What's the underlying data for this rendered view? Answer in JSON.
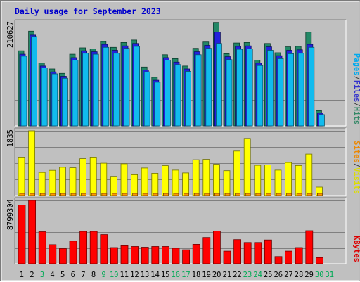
{
  "chart_data": {
    "type": "bar",
    "title": "Daily usage for September 2023",
    "categories": [
      "1",
      "2",
      "3",
      "4",
      "5",
      "6",
      "7",
      "8",
      "9",
      "10",
      "11",
      "12",
      "13",
      "14",
      "15",
      "16",
      "17",
      "18",
      "19",
      "20",
      "21",
      "22",
      "23",
      "24",
      "25",
      "26",
      "27",
      "28",
      "29",
      "30",
      "31"
    ],
    "weekend_days": [
      "3",
      "9",
      "10",
      "16",
      "17",
      "23",
      "24",
      "30",
      "31"
    ],
    "panels": [
      {
        "name": "traffic",
        "max_label": "210627",
        "ymax": 210627,
        "legend": [
          {
            "text": "Pages",
            "color": "#00aaee"
          },
          {
            "text": "/",
            "color": "#404040"
          },
          {
            "text": "Files",
            "color": "#3333cc"
          },
          {
            "text": "/",
            "color": "#404040"
          },
          {
            "text": "Hits",
            "color": "#338866"
          }
        ],
        "series": [
          {
            "name": "Hits",
            "color": "#228866",
            "values": [
              153000,
              193000,
              128000,
              116000,
              107000,
              146000,
              159000,
              157000,
              172000,
              160000,
              170000,
              175000,
              120000,
              99000,
              145000,
              137000,
              122000,
              158000,
              171000,
              211000,
              147000,
              169000,
              170000,
              134000,
              168000,
              149000,
              161000,
              162000,
              191000,
              31000,
              0
            ]
          },
          {
            "name": "Files",
            "color": "#2222dd",
            "values": [
              146000,
              185000,
              122000,
              110000,
              101000,
              139000,
              153000,
              151000,
              166000,
              154000,
              163000,
              168000,
              114000,
              93000,
              139000,
              130000,
              116000,
              151000,
              164000,
              191000,
              141000,
              162000,
              163000,
              128000,
              161000,
              143000,
              154000,
              155000,
              166000,
              26000,
              0
            ]
          },
          {
            "name": "Pages",
            "color": "#11bbee",
            "values": [
              142000,
              182000,
              118000,
              106000,
              97000,
              134000,
              148000,
              146000,
              160000,
              148000,
              158000,
              162000,
              110000,
              89000,
              134000,
              125000,
              111000,
              145000,
              158000,
              168000,
              135000,
              156000,
              157000,
              123000,
              154000,
              137000,
              147000,
              148000,
              160000,
              23000,
              0
            ]
          }
        ]
      },
      {
        "name": "visits",
        "max_label": "1835",
        "ymax": 1835,
        "legend": [
          {
            "text": "Sites",
            "color": "#ee8800"
          },
          {
            "text": "/",
            "color": "#404040"
          },
          {
            "text": "Visits",
            "color": "#dddd00"
          }
        ],
        "series": [
          {
            "name": "Visits",
            "color": "#ffff00",
            "values": [
              1090,
              1835,
              655,
              715,
              800,
              785,
              1045,
              1090,
              915,
              545,
              900,
              590,
              780,
              630,
              845,
              720,
              640,
              1015,
              1025,
              885,
              705,
              1260,
              1620,
              855,
              865,
              720,
              935,
              850,
              1175,
              240,
              0
            ]
          },
          {
            "name": "Sites",
            "color": "#ff9900",
            "values": [
              60,
              60,
              60,
              60,
              60,
              60,
              60,
              60,
              60,
              60,
              60,
              60,
              60,
              60,
              60,
              60,
              60,
              60,
              60,
              60,
              60,
              60,
              60,
              60,
              60,
              60,
              60,
              60,
              60,
              60,
              0
            ]
          }
        ]
      },
      {
        "name": "kbytes",
        "max_label": "8799304",
        "ymax": 8799304,
        "legend": [
          {
            "text": "KBytes",
            "color": "#dd0000"
          }
        ],
        "series": [
          {
            "name": "KBytes",
            "color": "#ff0000",
            "values": [
              8150000,
              8799304,
              4450000,
              2650000,
              2100000,
              3150000,
              4500000,
              4500000,
              4050000,
              2250000,
              2500000,
              2400000,
              2300000,
              2400000,
              2400000,
              2150000,
              1950000,
              2700000,
              3650000,
              4550000,
              1750000,
              3350000,
              2950000,
              2950000,
              3300000,
              1000000,
              1750000,
              2250000,
              4600000,
              850000,
              0
            ]
          }
        ]
      }
    ]
  }
}
